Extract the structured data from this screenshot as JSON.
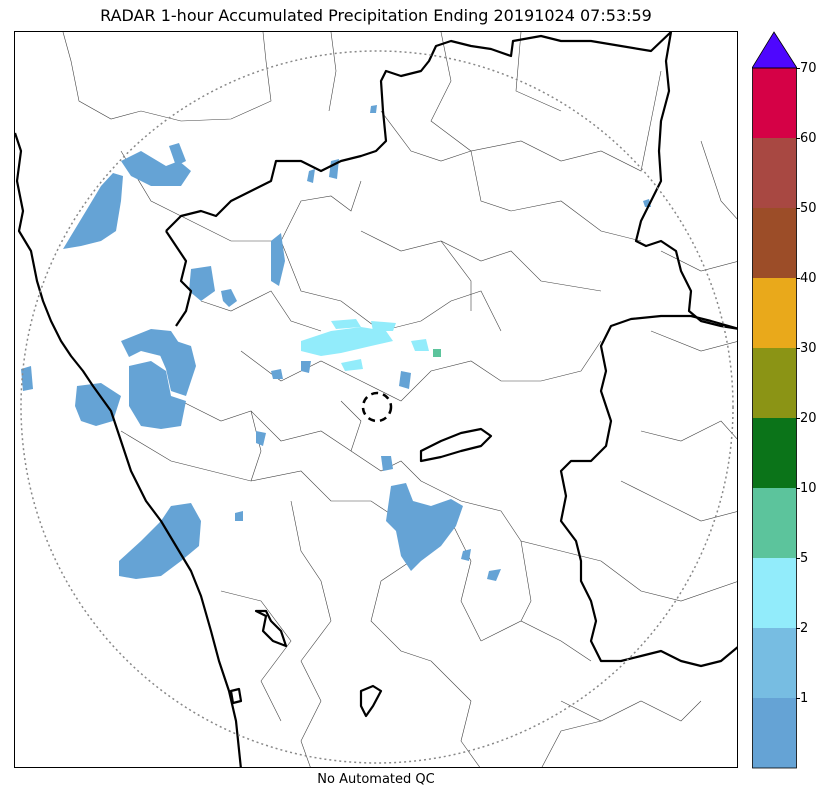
{
  "title": "RADAR 1-hour Accumulated Precipitation Ending 20191024 07:53:59",
  "footer": "No Automated QC",
  "colorbar": {
    "levels": [
      {
        "upper": "1",
        "color": "#65a3d5"
      },
      {
        "upper": "2",
        "color": "#77bde2"
      },
      {
        "upper": "5",
        "color": "#92ecfb"
      },
      {
        "upper": "10",
        "color": "#5cc49c"
      },
      {
        "upper": "20",
        "color": "#0b7419"
      },
      {
        "upper": "30",
        "color": "#8b9415"
      },
      {
        "upper": "40",
        "color": "#e9a91b"
      },
      {
        "upper": "50",
        "color": "#9c4d28"
      },
      {
        "upper": "60",
        "color": "#a84842"
      },
      {
        "upper": "70",
        "color": "#d50146"
      }
    ],
    "overflow_color": "#4e07fe"
  },
  "map": {
    "colors": {
      "precip_light": "#65a3d5",
      "precip_cyan": "#92ecfb",
      "precip_teal": "#5cc49c",
      "boundary": "#000000",
      "district": "#444444",
      "range_ring": "#888888"
    }
  }
}
